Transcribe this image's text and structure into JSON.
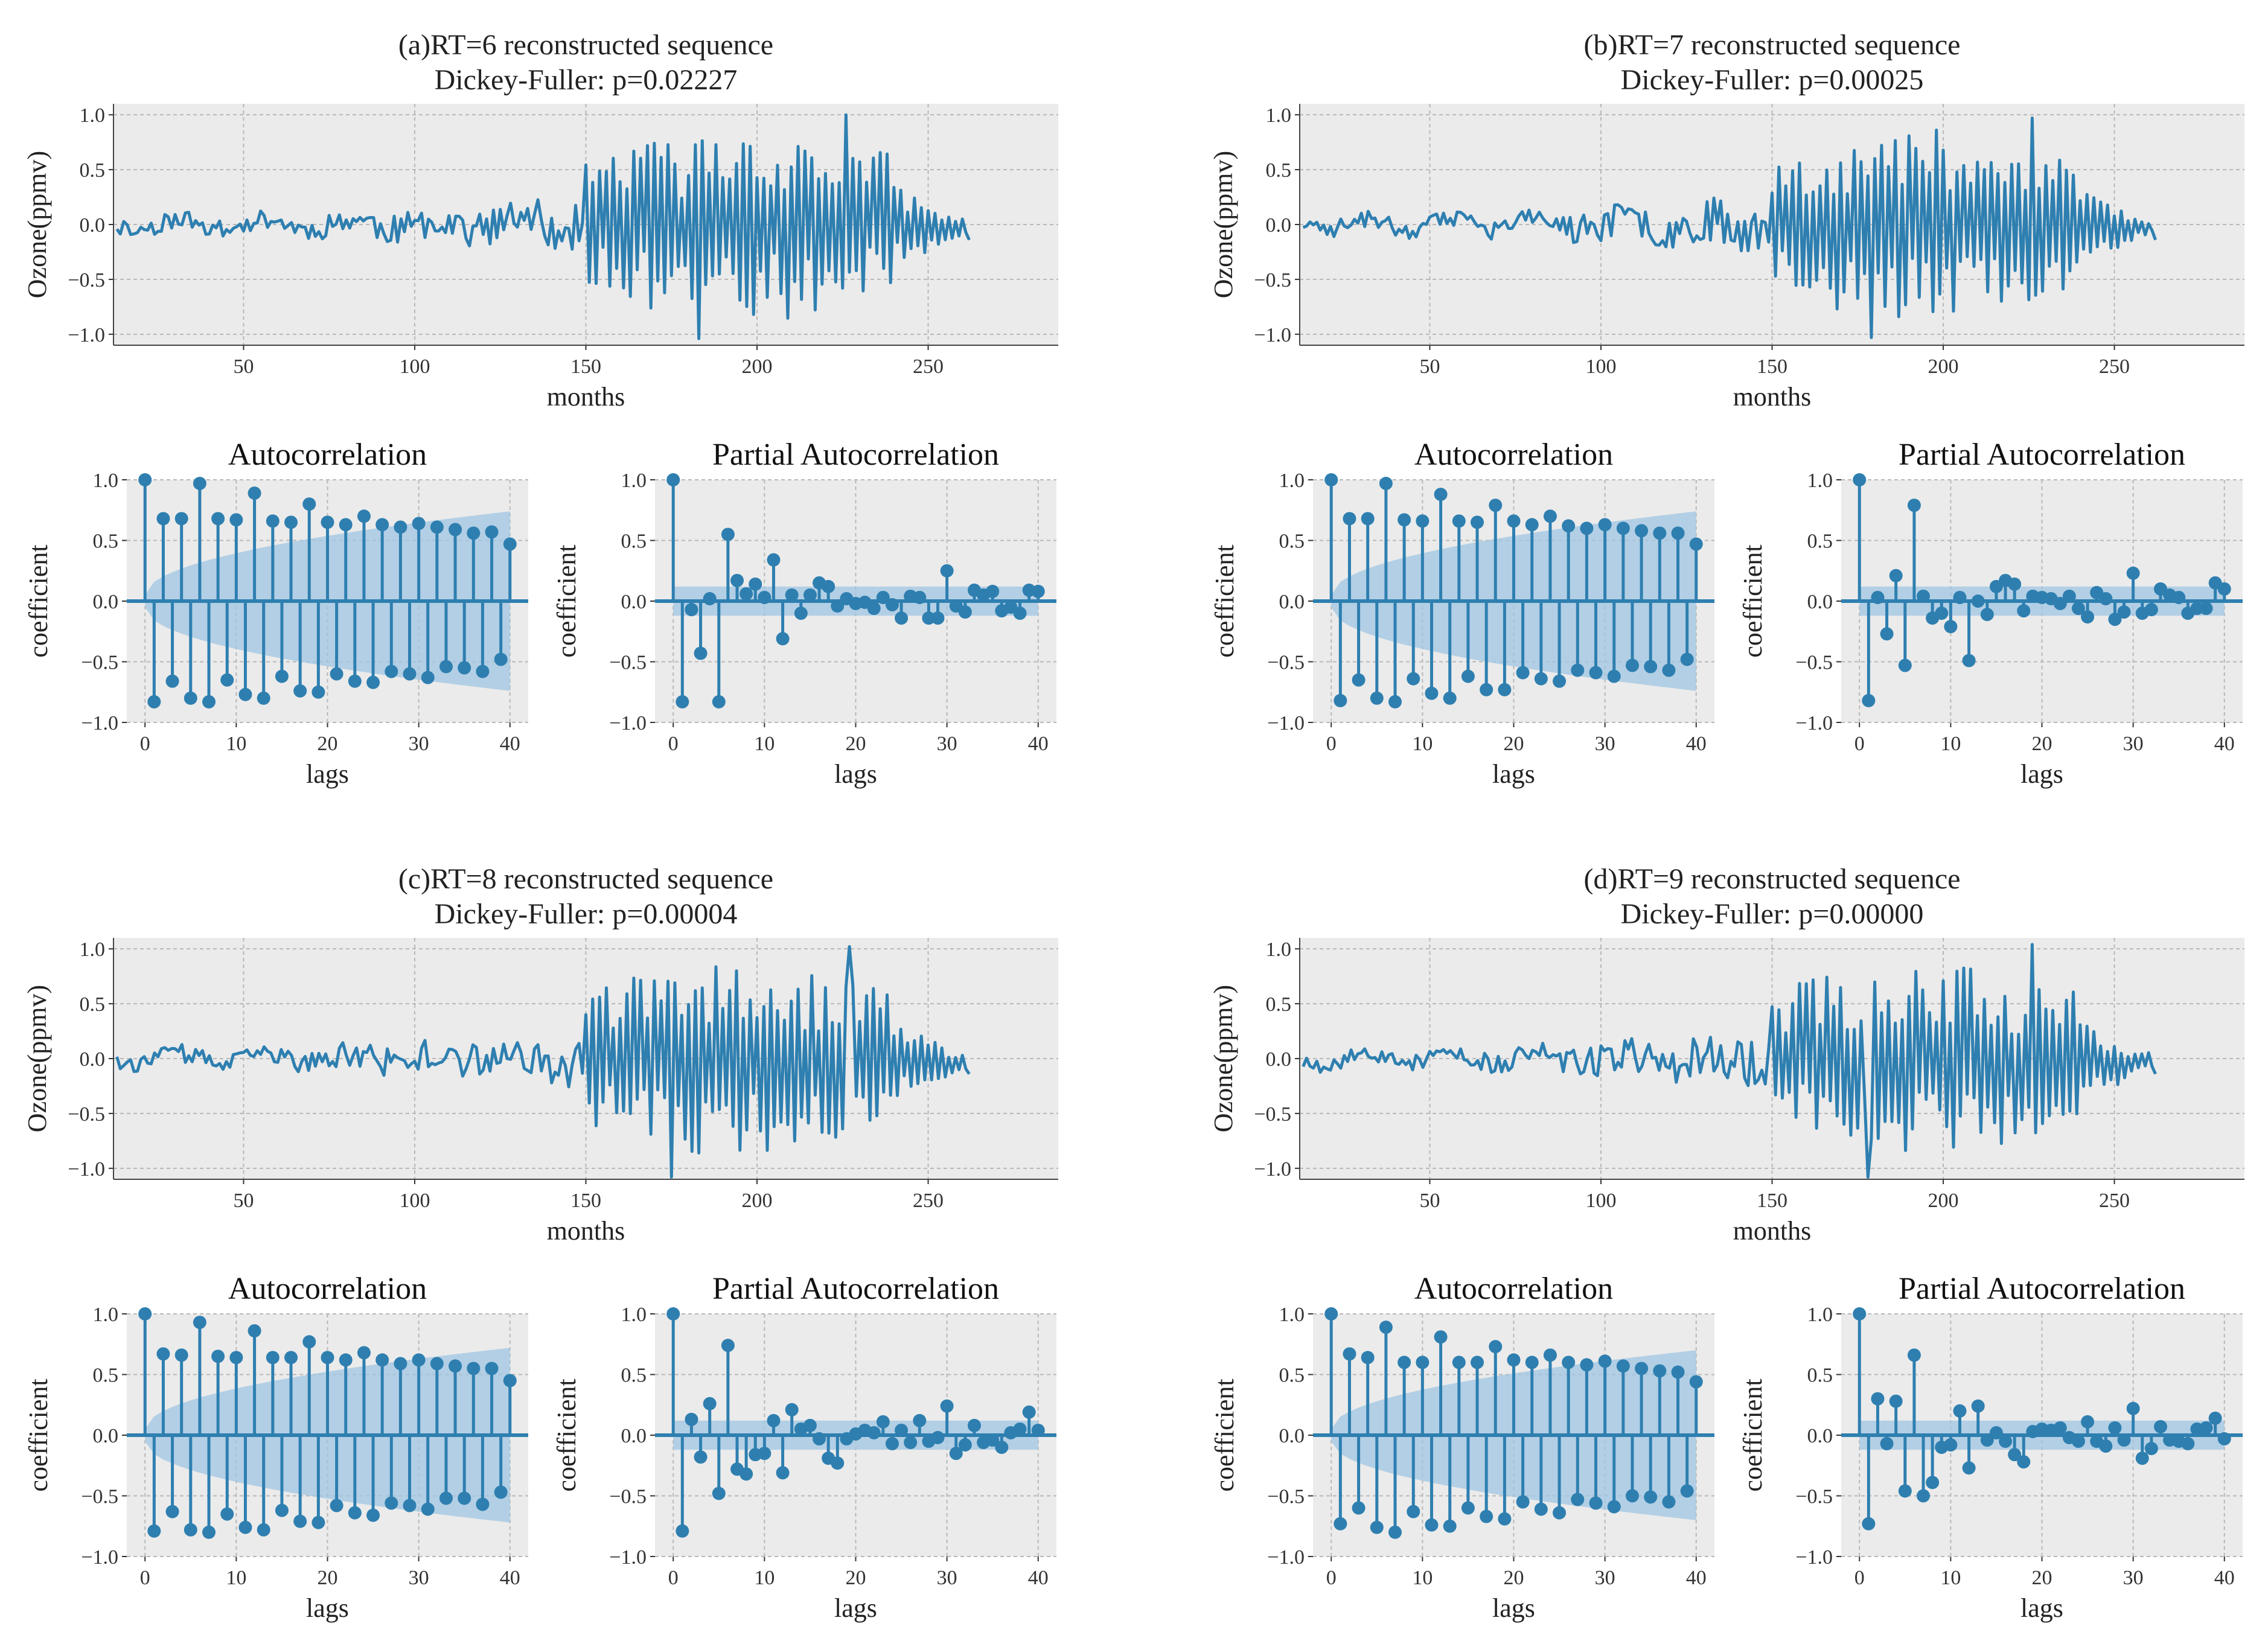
{
  "colors": {
    "line": "#2e7fb0",
    "band": "#9fc6e3",
    "background": "#ebebeb",
    "grid": "#b8b8b8"
  },
  "chart_data": [
    {
      "panel": "a",
      "series_chart": {
        "type": "line",
        "title_line1": "(a)RT=6 reconstructed sequence",
        "title_line2": "Dickey-Fuller: p=0.02227",
        "xlabel": "months",
        "ylabel": "Ozone(ppmv)",
        "xlim": [
          12,
          288
        ],
        "ylim": [
          -1.1,
          1.1
        ],
        "xticks": [
          50,
          100,
          150,
          200,
          250
        ],
        "yticks": [
          -1.0,
          -0.5,
          0.0,
          0.5,
          1.0
        ],
        "start": 13,
        "end": 262,
        "seed": 11,
        "peak_month": 226,
        "peak_value": 1.0,
        "trough_month": 183,
        "trough_value": -1.04
      },
      "acf_chart": {
        "type": "stem",
        "title": "Autocorrelation",
        "xlabel": "lags",
        "ylabel": "coefficient",
        "xlim": [
          -2,
          42
        ],
        "ylim": [
          -1.0,
          1.0
        ],
        "xticks": [
          0,
          10,
          20,
          30,
          40
        ],
        "yticks": [
          -1.0,
          -0.5,
          0.0,
          0.5,
          1.0
        ],
        "band_start": 0.05,
        "band_end": 0.74,
        "values": [
          1.0,
          -0.83,
          0.68,
          -0.66,
          0.68,
          -0.8,
          0.97,
          -0.83,
          0.68,
          -0.65,
          0.67,
          -0.77,
          0.89,
          -0.8,
          0.66,
          -0.62,
          0.65,
          -0.74,
          0.8,
          -0.75,
          0.65,
          -0.6,
          0.63,
          -0.66,
          0.7,
          -0.67,
          0.63,
          -0.58,
          0.61,
          -0.6,
          0.64,
          -0.63,
          0.61,
          -0.54,
          0.59,
          -0.55,
          0.56,
          -0.58,
          0.57,
          -0.48,
          0.47
        ]
      },
      "pacf_chart": {
        "type": "stem",
        "title": "Partial Autocorrelation",
        "xlabel": "lags",
        "ylabel": "coefficient",
        "xlim": [
          -2,
          42
        ],
        "ylim": [
          -1.0,
          1.0
        ],
        "xticks": [
          0,
          10,
          20,
          30,
          40
        ],
        "yticks": [
          -1.0,
          -0.5,
          0.0,
          0.5,
          1.0
        ],
        "band": 0.12,
        "values": [
          1.0,
          -0.83,
          -0.07,
          -0.43,
          0.02,
          -0.83,
          0.55,
          0.17,
          0.06,
          0.14,
          0.03,
          0.34,
          -0.31,
          0.05,
          -0.1,
          0.05,
          0.15,
          0.12,
          -0.04,
          0.02,
          -0.02,
          -0.01,
          -0.06,
          0.03,
          -0.03,
          -0.14,
          0.04,
          0.03,
          -0.14,
          -0.14,
          0.25,
          -0.04,
          -0.09,
          0.09,
          0.05,
          0.08,
          -0.08,
          -0.05,
          -0.1,
          0.09,
          0.08
        ]
      }
    },
    {
      "panel": "b",
      "series_chart": {
        "type": "line",
        "title_line1": "(b)RT=7 reconstructed sequence",
        "title_line2": "Dickey-Fuller: p=0.00025",
        "xlabel": "months",
        "ylabel": "Ozone(ppmv)",
        "xlim": [
          12,
          288
        ],
        "ylim": [
          -1.1,
          1.1
        ],
        "xticks": [
          50,
          100,
          150,
          200,
          250
        ],
        "yticks": [
          -1.0,
          -0.5,
          0.0,
          0.5,
          1.0
        ],
        "start": 13,
        "end": 262,
        "seed": 23,
        "peak_month": 226,
        "peak_value": 0.97,
        "trough_month": 179,
        "trough_value": -1.03
      },
      "acf_chart": {
        "type": "stem",
        "title": "Autocorrelation",
        "xlabel": "lags",
        "ylabel": "coefficient",
        "xlim": [
          -2,
          42
        ],
        "ylim": [
          -1.0,
          1.0
        ],
        "xticks": [
          0,
          10,
          20,
          30,
          40
        ],
        "yticks": [
          -1.0,
          -0.5,
          0.0,
          0.5,
          1.0
        ],
        "band_start": 0.05,
        "band_end": 0.74,
        "values": [
          1.0,
          -0.82,
          0.68,
          -0.65,
          0.68,
          -0.8,
          0.97,
          -0.83,
          0.67,
          -0.64,
          0.66,
          -0.76,
          0.88,
          -0.8,
          0.66,
          -0.62,
          0.65,
          -0.73,
          0.79,
          -0.73,
          0.66,
          -0.59,
          0.63,
          -0.64,
          0.7,
          -0.66,
          0.62,
          -0.57,
          0.6,
          -0.59,
          0.63,
          -0.62,
          0.6,
          -0.53,
          0.58,
          -0.54,
          0.56,
          -0.57,
          0.56,
          -0.48,
          0.47
        ]
      },
      "pacf_chart": {
        "type": "stem",
        "title": "Partial Autocorrelation",
        "xlabel": "lags",
        "ylabel": "coefficient",
        "xlim": [
          -2,
          42
        ],
        "ylim": [
          -1.0,
          1.0
        ],
        "xticks": [
          0,
          10,
          20,
          30,
          40
        ],
        "yticks": [
          -1.0,
          -0.5,
          0.0,
          0.5,
          1.0
        ],
        "band": 0.12,
        "values": [
          1.0,
          -0.82,
          0.03,
          -0.27,
          0.21,
          -0.53,
          0.79,
          0.04,
          -0.14,
          -0.1,
          -0.21,
          0.03,
          -0.49,
          0.0,
          -0.11,
          0.12,
          0.17,
          0.14,
          -0.08,
          0.04,
          0.03,
          0.02,
          -0.02,
          0.04,
          -0.06,
          -0.13,
          0.07,
          0.02,
          -0.15,
          -0.09,
          0.23,
          -0.1,
          -0.07,
          0.1,
          0.05,
          0.03,
          -0.1,
          -0.06,
          -0.06,
          0.15,
          0.1
        ]
      }
    },
    {
      "panel": "c",
      "series_chart": {
        "type": "line",
        "title_line1": "(c)RT=8 reconstructed sequence",
        "title_line2": "Dickey-Fuller: p=0.00004",
        "xlabel": "months",
        "ylabel": "Ozone(ppmv)",
        "xlim": [
          12,
          288
        ],
        "ylim": [
          -1.1,
          1.1
        ],
        "xticks": [
          50,
          100,
          150,
          200,
          250
        ],
        "yticks": [
          -1.0,
          -0.5,
          0.0,
          0.5,
          1.0
        ],
        "start": 13,
        "end": 262,
        "seed": 37,
        "peak_month": 227,
        "peak_value": 1.02,
        "trough_month": 175,
        "trough_value": -1.08
      },
      "acf_chart": {
        "type": "stem",
        "title": "Autocorrelation",
        "xlabel": "lags",
        "ylabel": "coefficient",
        "xlim": [
          -2,
          42
        ],
        "ylim": [
          -1.0,
          1.0
        ],
        "xticks": [
          0,
          10,
          20,
          30,
          40
        ],
        "yticks": [
          -1.0,
          -0.5,
          0.0,
          0.5,
          1.0
        ],
        "band_start": 0.05,
        "band_end": 0.72,
        "values": [
          1.0,
          -0.79,
          0.67,
          -0.63,
          0.66,
          -0.78,
          0.93,
          -0.8,
          0.65,
          -0.65,
          0.64,
          -0.76,
          0.86,
          -0.78,
          0.64,
          -0.62,
          0.64,
          -0.71,
          0.77,
          -0.72,
          0.64,
          -0.58,
          0.62,
          -0.64,
          0.68,
          -0.66,
          0.62,
          -0.56,
          0.59,
          -0.58,
          0.62,
          -0.61,
          0.59,
          -0.52,
          0.57,
          -0.52,
          0.55,
          -0.57,
          0.55,
          -0.47,
          0.45
        ]
      },
      "pacf_chart": {
        "type": "stem",
        "title": "Partial Autocorrelation",
        "xlabel": "lags",
        "ylabel": "coefficient",
        "xlim": [
          -2,
          42
        ],
        "ylim": [
          -1.0,
          1.0
        ],
        "xticks": [
          0,
          10,
          20,
          30,
          40
        ],
        "yticks": [
          -1.0,
          -0.5,
          0.0,
          0.5,
          1.0
        ],
        "band": 0.12,
        "values": [
          1.0,
          -0.79,
          0.13,
          -0.18,
          0.26,
          -0.48,
          0.74,
          -0.28,
          -0.32,
          -0.16,
          -0.15,
          0.12,
          -0.31,
          0.21,
          0.05,
          0.08,
          -0.03,
          -0.19,
          -0.23,
          -0.03,
          0.01,
          0.04,
          0.02,
          0.11,
          -0.07,
          0.04,
          -0.06,
          0.12,
          -0.05,
          -0.02,
          0.24,
          -0.15,
          -0.08,
          0.08,
          -0.06,
          -0.04,
          -0.1,
          0.02,
          0.05,
          0.19,
          0.04
        ]
      }
    },
    {
      "panel": "d",
      "series_chart": {
        "type": "line",
        "title_line1": "(d)RT=9 reconstructed sequence",
        "title_line2": "Dickey-Fuller: p=0.00000",
        "xlabel": "months",
        "ylabel": "Ozone(ppmv)",
        "xlim": [
          12,
          288
        ],
        "ylim": [
          -1.1,
          1.1
        ],
        "xticks": [
          50,
          100,
          150,
          200,
          250
        ],
        "yticks": [
          -1.0,
          -0.5,
          0.0,
          0.5,
          1.0
        ],
        "start": 13,
        "end": 262,
        "seed": 53,
        "peak_month": 226,
        "peak_value": 1.04,
        "trough_month": 178,
        "trough_value": -1.14
      },
      "acf_chart": {
        "type": "stem",
        "title": "Autocorrelation",
        "xlabel": "lags",
        "ylabel": "coefficient",
        "xlim": [
          -2,
          42
        ],
        "ylim": [
          -1.0,
          1.0
        ],
        "xticks": [
          0,
          10,
          20,
          30,
          40
        ],
        "yticks": [
          -1.0,
          -0.5,
          0.0,
          0.5,
          1.0
        ],
        "band_start": 0.05,
        "band_end": 0.7,
        "values": [
          1.0,
          -0.73,
          0.67,
          -0.6,
          0.64,
          -0.76,
          0.89,
          -0.8,
          0.6,
          -0.63,
          0.6,
          -0.74,
          0.81,
          -0.75,
          0.6,
          -0.6,
          0.6,
          -0.67,
          0.73,
          -0.69,
          0.62,
          -0.55,
          0.6,
          -0.61,
          0.66,
          -0.64,
          0.6,
          -0.53,
          0.58,
          -0.56,
          0.61,
          -0.59,
          0.57,
          -0.5,
          0.55,
          -0.51,
          0.53,
          -0.55,
          0.52,
          -0.46,
          0.44
        ]
      },
      "pacf_chart": {
        "type": "stem",
        "title": "Partial Autocorrelation",
        "xlabel": "lags",
        "ylabel": "coefficient",
        "xlim": [
          -2,
          42
        ],
        "ylim": [
          -1.0,
          1.0
        ],
        "xticks": [
          0,
          10,
          20,
          30,
          40
        ],
        "yticks": [
          -1.0,
          -0.5,
          0.0,
          0.5,
          1.0
        ],
        "band": 0.12,
        "values": [
          1.0,
          -0.73,
          0.3,
          -0.07,
          0.28,
          -0.46,
          0.66,
          -0.5,
          -0.39,
          -0.1,
          -0.08,
          0.2,
          -0.27,
          0.24,
          -0.04,
          0.02,
          -0.05,
          -0.16,
          -0.22,
          0.03,
          0.05,
          0.04,
          0.06,
          -0.02,
          -0.05,
          0.11,
          -0.05,
          -0.09,
          0.06,
          -0.04,
          0.22,
          -0.19,
          -0.11,
          0.07,
          -0.04,
          -0.05,
          -0.07,
          0.05,
          0.06,
          0.14,
          -0.03
        ]
      }
    }
  ]
}
